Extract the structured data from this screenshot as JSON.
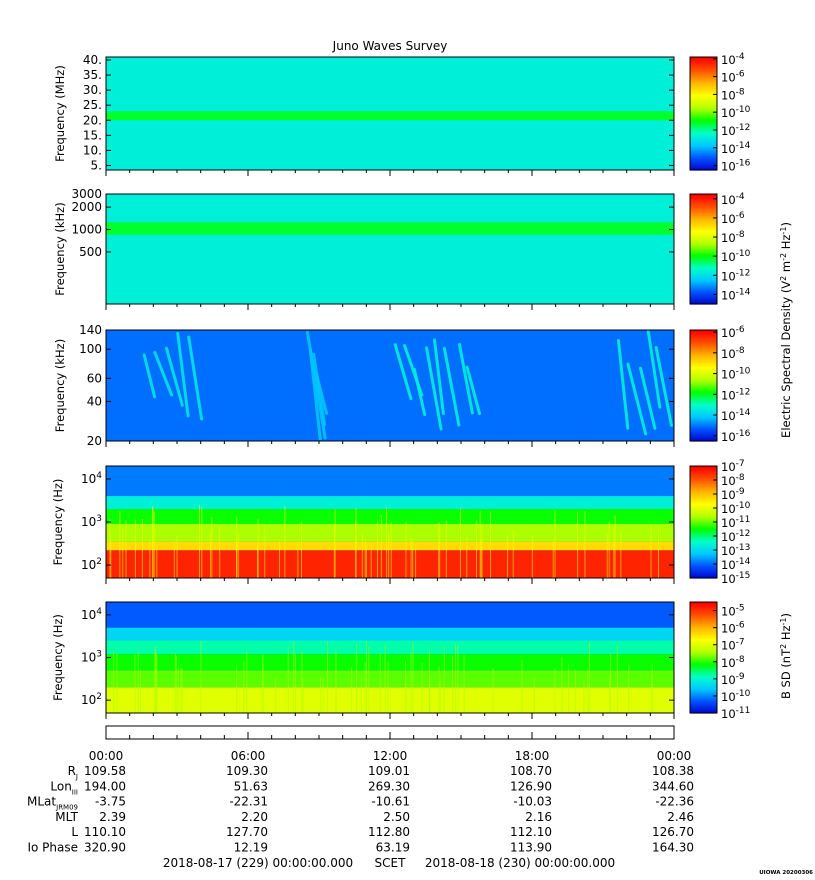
{
  "title": "Juno Waves Survey",
  "footer": {
    "start": "2018-08-17 (229) 00:00:00.000",
    "mid": "SCET",
    "end": "2018-08-18 (230) 00:00:00.000",
    "stamp": "UIOWA 20200306"
  },
  "colors": {
    "frame": "#000000",
    "background": "#ffffff",
    "colormap": [
      "#0000c8",
      "#0050ff",
      "#00c8ff",
      "#00ffc8",
      "#00ff00",
      "#b4ff00",
      "#ffff00",
      "#ffb400",
      "#ff5000",
      "#ff0000"
    ]
  },
  "chart_data": [
    {
      "type": "heatmap",
      "ylabel": "Frequency (MHz)",
      "yticks": [
        "40.",
        "35.",
        "30.",
        "25.",
        "20.",
        "15.",
        "10.",
        "5."
      ],
      "ytick_values": [
        40,
        35,
        30,
        25,
        20,
        15,
        10,
        5
      ],
      "ylim": [
        3.5,
        41
      ],
      "yscale": "linear",
      "colorbar_ticks": [
        "-4",
        "-6",
        "-8",
        "-10",
        "-12",
        "-14",
        "-16"
      ],
      "colorbar_values": [
        -4,
        -6,
        -8,
        -10,
        -12,
        -14,
        -16
      ],
      "colorbar_range": [
        -16.5,
        -3.8
      ],
      "background_level": 0.3,
      "bands": [
        {
          "y": [
            20,
            23
          ],
          "level": 0.42
        }
      ],
      "features": []
    },
    {
      "type": "heatmap",
      "ylabel": "Frequency (kHz)",
      "yticks": [
        "3000",
        "2000",
        "1000",
        "500"
      ],
      "ytick_values": [
        3000,
        2000,
        1000,
        500
      ],
      "ylim": [
        100,
        3000
      ],
      "yscale": "log",
      "colorbar_ticks": [
        "-4",
        "-6",
        "-8",
        "-10",
        "-12",
        "-14"
      ],
      "colorbar_values": [
        -4,
        -6,
        -8,
        -10,
        -12,
        -14
      ],
      "colorbar_range": [
        -15,
        -3.5
      ],
      "background_level": 0.3,
      "bands": [
        {
          "y": [
            850,
            1250
          ],
          "level": 0.42
        }
      ],
      "features": []
    },
    {
      "type": "heatmap",
      "ylabel": "Frequency (kHz)",
      "yticks": [
        "140",
        "100",
        "60",
        "40",
        "20"
      ],
      "ytick_values": [
        140,
        100,
        60,
        40,
        20
      ],
      "ylim": [
        20,
        140
      ],
      "yscale": "log",
      "colorbar_ticks": [
        "-6",
        "-8",
        "-10",
        "-12",
        "-14",
        "-16"
      ],
      "colorbar_values": [
        -6,
        -8,
        -10,
        -12,
        -14,
        -16
      ],
      "colorbar_range": [
        -16.5,
        -5.8
      ],
      "background_level": 0.14,
      "bands": [],
      "features": [
        {
          "x": [
            1.5,
            3.8
          ],
          "level": 0.28
        },
        {
          "x": [
            8.5,
            9.0
          ],
          "level": 0.22
        },
        {
          "x": [
            12.1,
            15.6
          ],
          "level": 0.3
        },
        {
          "x": [
            21.6,
            23.6
          ],
          "level": 0.3
        }
      ]
    },
    {
      "type": "heatmap",
      "ylabel": "Frequency (Hz)",
      "yticks": [
        "4",
        "3",
        "2"
      ],
      "ytick_values": [
        10000,
        1000,
        100
      ],
      "ylim": [
        50,
        20000
      ],
      "yscale": "log",
      "colorbar_ticks": [
        "-7",
        "-8",
        "-9",
        "-10",
        "-11",
        "-12",
        "-13",
        "-14",
        "-15"
      ],
      "colorbar_values": [
        -7,
        -8,
        -9,
        -10,
        -11,
        -12,
        -13,
        -14,
        -15
      ],
      "colorbar_range": [
        -15,
        -7
      ],
      "background_level": 0.15,
      "bands": [
        {
          "y": [
            2000,
            4000
          ],
          "level": 0.3
        },
        {
          "y": [
            900,
            2000
          ],
          "level": 0.45
        },
        {
          "y": [
            350,
            900
          ],
          "level": 0.55
        },
        {
          "y": [
            220,
            350
          ],
          "level": 0.72
        },
        {
          "y": [
            50,
            220
          ],
          "level": 0.95
        }
      ],
      "features": []
    },
    {
      "type": "heatmap",
      "ylabel": "Frequency (Hz)",
      "yticks": [
        "4",
        "3",
        "2"
      ],
      "ytick_values": [
        10000,
        1000,
        100
      ],
      "ylim": [
        50,
        20000
      ],
      "yscale": "log",
      "colorbar_ticks": [
        "-5",
        "-6",
        "-7",
        "-8",
        "-9",
        "-10",
        "-11"
      ],
      "colorbar_values": [
        -5,
        -6,
        -7,
        -8,
        -9,
        -10,
        -11
      ],
      "colorbar_range": [
        -11,
        -4.5
      ],
      "colorbar_label": "B SD (nT",
      "background_level": 0.12,
      "bands": [
        {
          "y": [
            5000,
            20000
          ],
          "level": 0.12
        },
        {
          "y": [
            2500,
            5000
          ],
          "level": 0.25
        },
        {
          "y": [
            1200,
            2500
          ],
          "level": 0.35
        },
        {
          "y": [
            500,
            1200
          ],
          "level": 0.45
        },
        {
          "y": [
            200,
            500
          ],
          "level": 0.5
        },
        {
          "y": [
            50,
            200
          ],
          "level": 0.62
        }
      ],
      "features": []
    }
  ],
  "shared_colorbar_label": "Electric Spectral Density (V",
  "xaxis": {
    "ticks": [
      "00:00",
      "06:00",
      "12:00",
      "18:00",
      "00:00"
    ],
    "tick_values": [
      0,
      6,
      12,
      18,
      24
    ],
    "xlim": [
      0,
      24
    ]
  },
  "ephemeris": {
    "labels": [
      "R",
      "Lon",
      "MLat",
      "MLT",
      "L",
      "Io Phase"
    ],
    "label_subs": [
      "J",
      "III",
      "JRM09",
      "",
      "",
      ""
    ],
    "rows": [
      [
        "109.58",
        "109.30",
        "109.01",
        "108.70",
        "108.38"
      ],
      [
        "194.00",
        "51.63",
        "269.30",
        "126.90",
        "344.60"
      ],
      [
        "-3.75",
        "-22.31",
        "-10.61",
        "-10.03",
        "-22.36"
      ],
      [
        "2.39",
        "2.20",
        "2.50",
        "2.16",
        "2.46"
      ],
      [
        "110.10",
        "127.70",
        "112.80",
        "112.10",
        "126.70"
      ],
      [
        "320.90",
        "12.19",
        "63.19",
        "113.90",
        "164.30"
      ]
    ]
  }
}
